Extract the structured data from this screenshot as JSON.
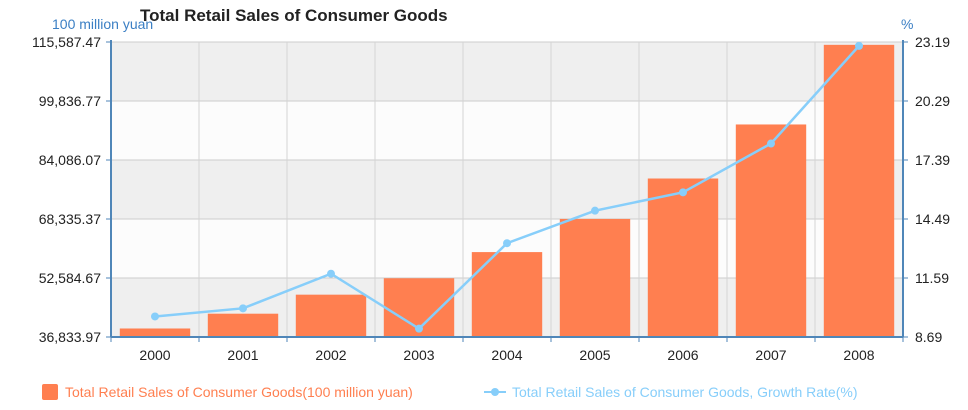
{
  "chart_data": {
    "type": "bar",
    "title": "Total Retail Sales of Consumer Goods",
    "left_axis_unit": "100 million yuan",
    "right_axis_unit": "%",
    "categories": [
      "2000",
      "2001",
      "2002",
      "2003",
      "2004",
      "2005",
      "2006",
      "2007",
      "2008"
    ],
    "y_ticks": [
      "36,833.97",
      "52,584.67",
      "68,335.37",
      "84,086.07",
      "99,836.77",
      "115,587.47"
    ],
    "y2_ticks": [
      "8.69",
      "11.59",
      "14.49",
      "17.39",
      "20.29",
      "23.19"
    ],
    "ylim": [
      36833.97,
      115587.47
    ],
    "y2lim": [
      8.69,
      23.19
    ],
    "grid": true,
    "legend_position": "bottom",
    "series": [
      {
        "name": "Total Retail Sales of Consumer Goods(100 million yuan)",
        "type": "bar",
        "axis": "left",
        "color": "#ff7f50",
        "values": [
          39106,
          43055,
          48136,
          52516,
          59501,
          68353,
          79145,
          93572,
          114830
        ]
      },
      {
        "name": "Total Retail Sales of Consumer Goods, Growth Rate(%)",
        "type": "line",
        "axis": "right",
        "color": "#87cefa",
        "values": [
          9.7,
          10.1,
          11.8,
          9.1,
          13.3,
          14.9,
          15.8,
          18.2,
          23.0
        ]
      }
    ]
  }
}
